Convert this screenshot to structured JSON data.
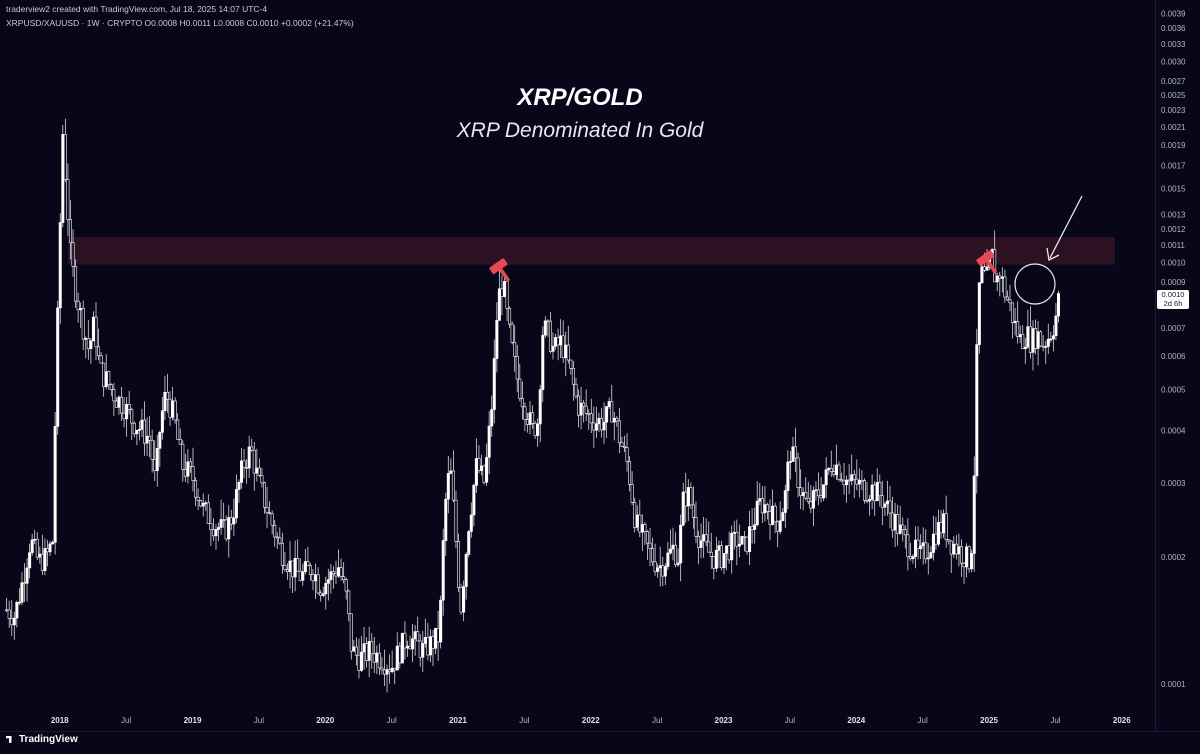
{
  "header": {
    "credit": "traderview2 created with TradingView.com, Jul 18, 2025 14:07 UTC-4",
    "symbol_line": "XRPUSD/XAUUSD · 1W · CRYPTO  O0.0008  H0.0011  L0.0008  C0.0010  +0.0002 (+21.47%)"
  },
  "annotations": {
    "title": "XRP/GOLD",
    "subtitle": "XRP Denominated In Gold"
  },
  "price_badge": {
    "value": "0.0010",
    "countdown": "2d 6h"
  },
  "footer": {
    "brand": "TradingView"
  },
  "colors": {
    "background": "#070719",
    "candle": "#ffffff",
    "resistance_zone": "#3a1526",
    "marker": "#e84855"
  },
  "icons": [
    "hammer-icon",
    "arrow-icon",
    "circle-highlight"
  ],
  "chart_data": {
    "type": "candlestick",
    "scale": "log",
    "interval": "1W",
    "y_ticks": [
      "0.0039",
      "0.0036",
      "0.0033",
      "0.0030",
      "0.0027",
      "0.0025",
      "0.0023",
      "0.0021",
      "0.0019",
      "0.0017",
      "0.0015",
      "0.0013",
      "0.0012",
      "0.0011",
      "0.0010",
      "0.0009",
      "0.0008",
      "0.0007",
      "0.0006",
      "0.0005",
      "0.0004",
      "0.0003",
      "0.0002",
      "0.0001"
    ],
    "x_ticks": [
      {
        "label": "2018",
        "t": 2018.0,
        "year": true
      },
      {
        "label": "Jul",
        "t": 2018.5
      },
      {
        "label": "2019",
        "t": 2019.0,
        "year": true
      },
      {
        "label": "Jul",
        "t": 2019.5
      },
      {
        "label": "2020",
        "t": 2020.0,
        "year": true
      },
      {
        "label": "Jul",
        "t": 2020.5
      },
      {
        "label": "2021",
        "t": 2021.0,
        "year": true
      },
      {
        "label": "Jul",
        "t": 2021.5
      },
      {
        "label": "2022",
        "t": 2022.0,
        "year": true
      },
      {
        "label": "Jul",
        "t": 2022.5
      },
      {
        "label": "2023",
        "t": 2023.0,
        "year": true
      },
      {
        "label": "Jul",
        "t": 2023.5
      },
      {
        "label": "2024",
        "t": 2024.0,
        "year": true
      },
      {
        "label": "Jul",
        "t": 2024.5
      },
      {
        "label": "2025",
        "t": 2025.0,
        "year": true
      },
      {
        "label": "Jul",
        "t": 2025.5
      },
      {
        "label": "2026",
        "t": 2026.0,
        "year": true
      }
    ],
    "x_range": [
      2017.55,
      2026.25
    ],
    "y_range": [
      8.58e-05,
      0.0042
    ],
    "resistance_zone": [
      0.00099,
      0.00115
    ],
    "series": [
      {
        "type": "weekly-close-path",
        "points": [
          [
            2017.6,
            0.00015
          ],
          [
            2017.66,
            0.000145
          ],
          [
            2017.72,
            0.000175
          ],
          [
            2017.78,
            0.00022
          ],
          [
            2017.84,
            0.000195
          ],
          [
            2017.9,
            0.0002
          ],
          [
            2017.95,
            0.00022
          ],
          [
            2017.97,
            0.0005
          ],
          [
            2018.0,
            0.0011
          ],
          [
            2018.02,
            0.0021
          ],
          [
            2018.05,
            0.0015
          ],
          [
            2018.08,
            0.00105
          ],
          [
            2018.11,
            0.0009
          ],
          [
            2018.14,
            0.0008
          ],
          [
            2018.18,
            0.0007
          ],
          [
            2018.22,
            0.00062
          ],
          [
            2018.26,
            0.00072
          ],
          [
            2018.3,
            0.00056
          ],
          [
            2018.36,
            0.00052
          ],
          [
            2018.42,
            0.00048
          ],
          [
            2018.48,
            0.00046
          ],
          [
            2018.55,
            0.00042
          ],
          [
            2018.62,
            0.0004
          ],
          [
            2018.68,
            0.00038
          ],
          [
            2018.72,
            0.0003
          ],
          [
            2018.76,
            0.00042
          ],
          [
            2018.8,
            0.00049
          ],
          [
            2018.86,
            0.00043
          ],
          [
            2018.92,
            0.00033
          ],
          [
            2019.0,
            0.00031
          ],
          [
            2019.08,
            0.00026
          ],
          [
            2019.16,
            0.00024
          ],
          [
            2019.24,
            0.00023
          ],
          [
            2019.3,
            0.00025
          ],
          [
            2019.38,
            0.00033
          ],
          [
            2019.44,
            0.00036
          ],
          [
            2019.5,
            0.0003
          ],
          [
            2019.58,
            0.00025
          ],
          [
            2019.66,
            0.00021
          ],
          [
            2019.74,
            0.00019
          ],
          [
            2019.82,
            0.00018
          ],
          [
            2019.9,
            0.00019
          ],
          [
            2019.96,
            0.00017
          ],
          [
            2020.04,
            0.00018
          ],
          [
            2020.1,
            0.00019
          ],
          [
            2020.16,
            0.00016
          ],
          [
            2020.2,
            0.00012
          ],
          [
            2020.26,
            0.000115
          ],
          [
            2020.34,
            0.00012
          ],
          [
            2020.42,
            0.000115
          ],
          [
            2020.5,
            0.00011
          ],
          [
            2020.56,
            0.00012
          ],
          [
            2020.62,
            0.00013
          ],
          [
            2020.68,
            0.000125
          ],
          [
            2020.74,
            0.00012
          ],
          [
            2020.8,
            0.000125
          ],
          [
            2020.86,
            0.00013
          ],
          [
            2020.9,
            0.00026
          ],
          [
            2020.94,
            0.00033
          ],
          [
            2020.98,
            0.00023
          ],
          [
            2021.02,
            0.00015
          ],
          [
            2021.08,
            0.00024
          ],
          [
            2021.14,
            0.00033
          ],
          [
            2021.2,
            0.0003
          ],
          [
            2021.26,
            0.00048
          ],
          [
            2021.3,
            0.00082
          ],
          [
            2021.34,
            0.0009
          ],
          [
            2021.38,
            0.0007
          ],
          [
            2021.44,
            0.00054
          ],
          [
            2021.5,
            0.00046
          ],
          [
            2021.56,
            0.0004
          ],
          [
            2021.6,
            0.00042
          ],
          [
            2021.64,
            0.0007
          ],
          [
            2021.68,
            0.00068
          ],
          [
            2021.72,
            0.00062
          ],
          [
            2021.78,
            0.00065
          ],
          [
            2021.84,
            0.00056
          ],
          [
            2021.9,
            0.00046
          ],
          [
            2021.96,
            0.00044
          ],
          [
            2022.04,
            0.00042
          ],
          [
            2022.1,
            0.00042
          ],
          [
            2022.16,
            0.00045
          ],
          [
            2022.22,
            0.00038
          ],
          [
            2022.28,
            0.00033
          ],
          [
            2022.34,
            0.00024
          ],
          [
            2022.4,
            0.00022
          ],
          [
            2022.46,
            0.0002
          ],
          [
            2022.52,
            0.00019
          ],
          [
            2022.58,
            0.0002
          ],
          [
            2022.62,
            0.00021
          ],
          [
            2022.66,
            0.0002
          ],
          [
            2022.7,
            0.00028
          ],
          [
            2022.74,
            0.00028
          ],
          [
            2022.8,
            0.00023
          ],
          [
            2022.86,
            0.00021
          ],
          [
            2022.92,
            0.0002
          ],
          [
            2022.98,
            0.0002
          ],
          [
            2023.04,
            0.00021
          ],
          [
            2023.1,
            0.00022
          ],
          [
            2023.16,
            0.00021
          ],
          [
            2023.22,
            0.00024
          ],
          [
            2023.28,
            0.00027
          ],
          [
            2023.34,
            0.00026
          ],
          [
            2023.4,
            0.00024
          ],
          [
            2023.46,
            0.00027
          ],
          [
            2023.5,
            0.00036
          ],
          [
            2023.54,
            0.00033
          ],
          [
            2023.58,
            0.00029
          ],
          [
            2023.64,
            0.00026
          ],
          [
            2023.7,
            0.00028
          ],
          [
            2023.76,
            0.0003
          ],
          [
            2023.82,
            0.00034
          ],
          [
            2023.88,
            0.00032
          ],
          [
            2023.94,
            0.0003
          ],
          [
            2024.0,
            0.0003
          ],
          [
            2024.06,
            0.00029
          ],
          [
            2024.12,
            0.00029
          ],
          [
            2024.18,
            0.00028
          ],
          [
            2024.24,
            0.00026
          ],
          [
            2024.3,
            0.00024
          ],
          [
            2024.36,
            0.00022
          ],
          [
            2024.42,
            0.00021
          ],
          [
            2024.48,
            0.0002
          ],
          [
            2024.54,
            0.00021
          ],
          [
            2024.6,
            0.00023
          ],
          [
            2024.66,
            0.00024
          ],
          [
            2024.7,
            0.00022
          ],
          [
            2024.76,
            0.00021
          ],
          [
            2024.82,
            0.0002
          ],
          [
            2024.86,
            0.000195
          ],
          [
            2024.88,
            0.00024
          ],
          [
            2024.9,
            0.00048
          ],
          [
            2024.92,
            0.00085
          ],
          [
            2024.95,
            0.00095
          ],
          [
            2024.98,
            0.0009
          ],
          [
            2025.02,
            0.00105
          ],
          [
            2025.05,
            0.0009
          ],
          [
            2025.08,
            0.00095
          ],
          [
            2025.12,
            0.00085
          ],
          [
            2025.16,
            0.00078
          ],
          [
            2025.2,
            0.0007
          ],
          [
            2025.24,
            0.00065
          ],
          [
            2025.28,
            0.00068
          ],
          [
            2025.32,
            0.00065
          ],
          [
            2025.36,
            0.00068
          ],
          [
            2025.4,
            0.00064
          ],
          [
            2025.44,
            0.00066
          ],
          [
            2025.48,
            0.0007
          ],
          [
            2025.52,
            0.00078
          ],
          [
            2025.54,
            0.001
          ]
        ]
      }
    ]
  }
}
